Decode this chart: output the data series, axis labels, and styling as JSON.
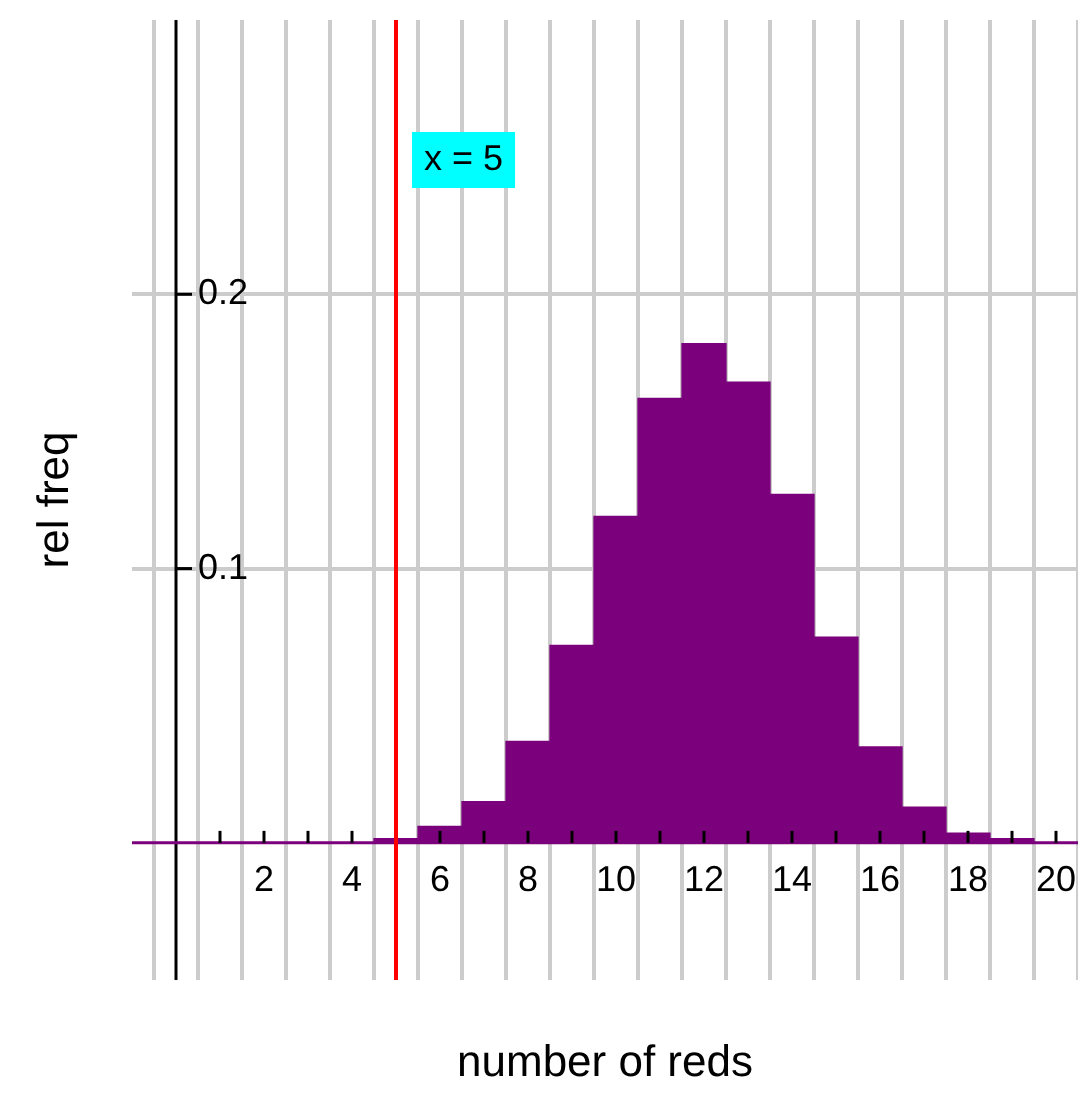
{
  "chart_data": {
    "type": "histogram",
    "xlabel": "number of reds",
    "ylabel": "rel freq",
    "bins": [
      4.5,
      5.5,
      6.5,
      7.5,
      8.5,
      9.5,
      10.5,
      11.5,
      12.5,
      13.5,
      14.5,
      15.5,
      16.5,
      17.5,
      18.5,
      19.5
    ],
    "values": [
      0.0015,
      0.006,
      0.015,
      0.037,
      0.072,
      0.119,
      0.162,
      0.182,
      0.168,
      0.127,
      0.075,
      0.035,
      0.013,
      0.0035,
      0.0015
    ],
    "color": "#7b007b",
    "xlim": [
      -1,
      20.5
    ],
    "ylim": [
      -0.05,
      0.3
    ],
    "xticks": [
      {
        "value": 0,
        "label": null
      },
      {
        "value": 1,
        "label": null
      },
      2,
      {
        "value": 3,
        "label": null
      },
      4,
      {
        "value": 5,
        "label": null
      },
      6,
      {
        "value": 7,
        "label": null
      },
      8,
      {
        "value": 9,
        "label": null
      },
      10,
      {
        "value": 11,
        "label": null
      },
      12,
      {
        "value": 13,
        "label": null
      },
      14,
      {
        "value": 15,
        "label": null
      },
      16,
      {
        "value": 17,
        "label": null
      },
      18,
      {
        "value": 19,
        "label": null
      },
      20
    ],
    "yticks": [
      0.1,
      0.2
    ],
    "grid": true,
    "ref_lines": [
      {
        "axis": "x",
        "value": 5,
        "label": "x = 5",
        "color": "#ff0000"
      }
    ]
  }
}
